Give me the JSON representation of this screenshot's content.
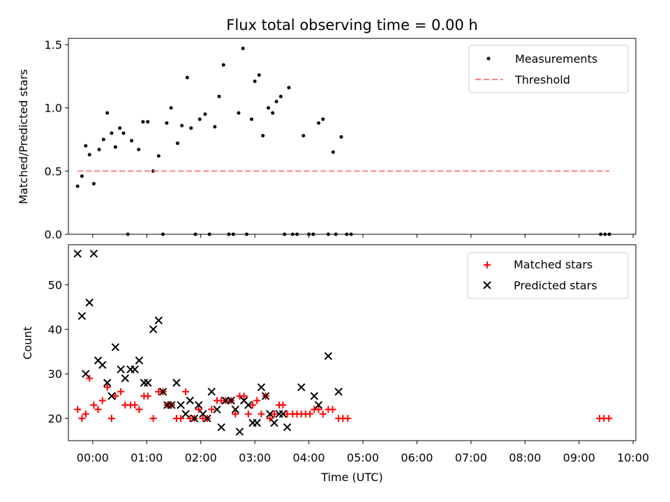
{
  "chart_data": [
    {
      "type": "scatter",
      "title": "Flux total observing time = 0.00 h",
      "ylabel": "Matched/Predicted stars",
      "xlabel": "",
      "xlim": [
        -0.45,
        10.05
      ],
      "ylim": [
        0,
        1.55
      ],
      "yticks": [
        {
          "value": 0.0,
          "label": "0.0"
        },
        {
          "value": 0.5,
          "label": "0.5"
        },
        {
          "value": 1.0,
          "label": "1.0"
        },
        {
          "value": 1.5,
          "label": "1.5"
        }
      ],
      "legend": {
        "placement": "top-right"
      },
      "series": [
        {
          "name": "Measurements",
          "kind": "dot",
          "color": "#000000",
          "points": [
            [
              -0.28,
              0.38
            ],
            [
              -0.2,
              0.46
            ],
            [
              -0.13,
              0.7
            ],
            [
              -0.06,
              0.63
            ],
            [
              0.02,
              0.4
            ],
            [
              0.12,
              0.67
            ],
            [
              0.2,
              0.75
            ],
            [
              0.27,
              0.96
            ],
            [
              0.35,
              0.8
            ],
            [
              0.42,
              0.69
            ],
            [
              0.5,
              0.84
            ],
            [
              0.57,
              0.8
            ],
            [
              0.65,
              0.0
            ],
            [
              0.72,
              0.74
            ],
            [
              0.85,
              0.67
            ],
            [
              0.93,
              0.89
            ],
            [
              1.02,
              0.89
            ],
            [
              1.12,
              0.5
            ],
            [
              1.22,
              0.62
            ],
            [
              1.3,
              0.0
            ],
            [
              1.37,
              0.88
            ],
            [
              1.45,
              1.0
            ],
            [
              1.57,
              0.72
            ],
            [
              1.65,
              0.86
            ],
            [
              1.75,
              1.24
            ],
            [
              1.82,
              0.84
            ],
            [
              1.9,
              0.0
            ],
            [
              1.98,
              0.91
            ],
            [
              2.08,
              0.95
            ],
            [
              2.16,
              0.0
            ],
            [
              2.26,
              0.85
            ],
            [
              2.34,
              1.09
            ],
            [
              2.42,
              1.34
            ],
            [
              2.52,
              0.0
            ],
            [
              2.6,
              0.0
            ],
            [
              2.7,
              0.96
            ],
            [
              2.78,
              1.47
            ],
            [
              2.85,
              0.0
            ],
            [
              2.94,
              0.91
            ],
            [
              3.0,
              1.21
            ],
            [
              3.08,
              1.26
            ],
            [
              3.15,
              0.78
            ],
            [
              3.25,
              1.0
            ],
            [
              3.33,
              0.96
            ],
            [
              3.4,
              1.05
            ],
            [
              3.48,
              1.09
            ],
            [
              3.55,
              0.0
            ],
            [
              3.63,
              1.16
            ],
            [
              3.7,
              0.0
            ],
            [
              3.78,
              0.0
            ],
            [
              3.9,
              0.78
            ],
            [
              4.0,
              0.0
            ],
            [
              4.08,
              0.0
            ],
            [
              4.18,
              0.88
            ],
            [
              4.26,
              0.91
            ],
            [
              4.36,
              0.0
            ],
            [
              4.45,
              0.65
            ],
            [
              4.5,
              0.0
            ],
            [
              4.6,
              0.77
            ],
            [
              4.7,
              0.0
            ],
            [
              4.78,
              0.0
            ],
            [
              9.4,
              0.0
            ],
            [
              9.48,
              0.0
            ],
            [
              9.56,
              0.0
            ]
          ]
        },
        {
          "name": "Threshold",
          "kind": "dashed-line",
          "color": "#ff8080",
          "points": [
            [
              -0.28,
              0.5
            ],
            [
              9.56,
              0.5
            ]
          ]
        }
      ]
    },
    {
      "type": "scatter",
      "title": "",
      "ylabel": "Count",
      "xlabel": "Time (UTC)",
      "xlim": [
        -0.45,
        10.05
      ],
      "ylim": [
        15,
        59
      ],
      "yticks": [
        {
          "value": 20,
          "label": "20"
        },
        {
          "value": 30,
          "label": "30"
        },
        {
          "value": 40,
          "label": "40"
        },
        {
          "value": 50,
          "label": "50"
        }
      ],
      "xticks": [
        {
          "value": 0,
          "label": "00:00"
        },
        {
          "value": 1,
          "label": "01:00"
        },
        {
          "value": 2,
          "label": "02:00"
        },
        {
          "value": 3,
          "label": "03:00"
        },
        {
          "value": 4,
          "label": "04:00"
        },
        {
          "value": 5,
          "label": "05:00"
        },
        {
          "value": 6,
          "label": "06:00"
        },
        {
          "value": 7,
          "label": "07:00"
        },
        {
          "value": 8,
          "label": "08:00"
        },
        {
          "value": 9,
          "label": "09:00"
        },
        {
          "value": 10,
          "label": "10:00"
        }
      ],
      "legend": {
        "placement": "top-right"
      },
      "series": [
        {
          "name": "Matched stars",
          "kind": "plus",
          "color": "#ff0000",
          "points": [
            [
              -0.28,
              22
            ],
            [
              -0.2,
              20
            ],
            [
              -0.13,
              21
            ],
            [
              -0.06,
              29
            ],
            [
              0.02,
              23
            ],
            [
              0.1,
              22
            ],
            [
              0.18,
              24
            ],
            [
              0.27,
              27
            ],
            [
              0.35,
              20
            ],
            [
              0.42,
              25
            ],
            [
              0.52,
              26
            ],
            [
              0.6,
              23
            ],
            [
              0.7,
              23
            ],
            [
              0.78,
              23
            ],
            [
              0.86,
              22
            ],
            [
              0.95,
              25
            ],
            [
              1.02,
              25
            ],
            [
              1.12,
              20
            ],
            [
              1.22,
              26
            ],
            [
              1.3,
              26
            ],
            [
              1.38,
              23
            ],
            [
              1.46,
              23
            ],
            [
              1.55,
              20
            ],
            [
              1.63,
              20
            ],
            [
              1.72,
              26
            ],
            [
              1.8,
              20
            ],
            [
              1.88,
              20
            ],
            [
              1.96,
              22
            ],
            [
              2.04,
              20
            ],
            [
              2.12,
              20
            ],
            [
              2.2,
              22
            ],
            [
              2.3,
              24
            ],
            [
              2.38,
              24
            ],
            [
              2.46,
              24
            ],
            [
              2.56,
              24
            ],
            [
              2.64,
              21
            ],
            [
              2.72,
              25
            ],
            [
              2.8,
              25
            ],
            [
              2.88,
              21
            ],
            [
              2.96,
              23
            ],
            [
              3.04,
              24
            ],
            [
              3.12,
              21
            ],
            [
              3.2,
              25
            ],
            [
              3.28,
              20
            ],
            [
              3.36,
              21
            ],
            [
              3.45,
              23
            ],
            [
              3.52,
              23
            ],
            [
              3.6,
              21
            ],
            [
              3.7,
              21
            ],
            [
              3.78,
              21
            ],
            [
              3.86,
              21
            ],
            [
              3.94,
              21
            ],
            [
              4.02,
              21
            ],
            [
              4.1,
              22
            ],
            [
              4.18,
              22
            ],
            [
              4.26,
              21
            ],
            [
              4.36,
              22
            ],
            [
              4.44,
              22
            ],
            [
              4.55,
              20
            ],
            [
              4.63,
              20
            ],
            [
              4.72,
              20
            ],
            [
              9.38,
              20
            ],
            [
              9.46,
              20
            ],
            [
              9.55,
              20
            ]
          ]
        },
        {
          "name": "Predicted stars",
          "kind": "cross",
          "color": "#000000",
          "points": [
            [
              -0.28,
              57
            ],
            [
              -0.2,
              43
            ],
            [
              -0.13,
              30
            ],
            [
              -0.06,
              46
            ],
            [
              0.02,
              57
            ],
            [
              0.1,
              33
            ],
            [
              0.18,
              32
            ],
            [
              0.27,
              28
            ],
            [
              0.35,
              25
            ],
            [
              0.42,
              36
            ],
            [
              0.52,
              31
            ],
            [
              0.6,
              29
            ],
            [
              0.7,
              31
            ],
            [
              0.78,
              31
            ],
            [
              0.86,
              33
            ],
            [
              0.95,
              28
            ],
            [
              1.02,
              28
            ],
            [
              1.12,
              40
            ],
            [
              1.22,
              42
            ],
            [
              1.3,
              26
            ],
            [
              1.38,
              23
            ],
            [
              1.46,
              23
            ],
            [
              1.55,
              28
            ],
            [
              1.63,
              23
            ],
            [
              1.72,
              21
            ],
            [
              1.8,
              24
            ],
            [
              1.88,
              20
            ],
            [
              1.96,
              23
            ],
            [
              2.04,
              21
            ],
            [
              2.12,
              20
            ],
            [
              2.2,
              26
            ],
            [
              2.3,
              22
            ],
            [
              2.38,
              18
            ],
            [
              2.46,
              24
            ],
            [
              2.56,
              24
            ],
            [
              2.64,
              22
            ],
            [
              2.72,
              17
            ],
            [
              2.8,
              24
            ],
            [
              2.88,
              23
            ],
            [
              2.96,
              19
            ],
            [
              3.04,
              19
            ],
            [
              3.12,
              27
            ],
            [
              3.2,
              25
            ],
            [
              3.28,
              21
            ],
            [
              3.36,
              19
            ],
            [
              3.45,
              21
            ],
            [
              3.52,
              21
            ],
            [
              3.6,
              18
            ],
            [
              3.86,
              27
            ],
            [
              4.1,
              25
            ],
            [
              4.18,
              23
            ],
            [
              4.36,
              34
            ],
            [
              4.55,
              26
            ]
          ]
        }
      ]
    }
  ]
}
